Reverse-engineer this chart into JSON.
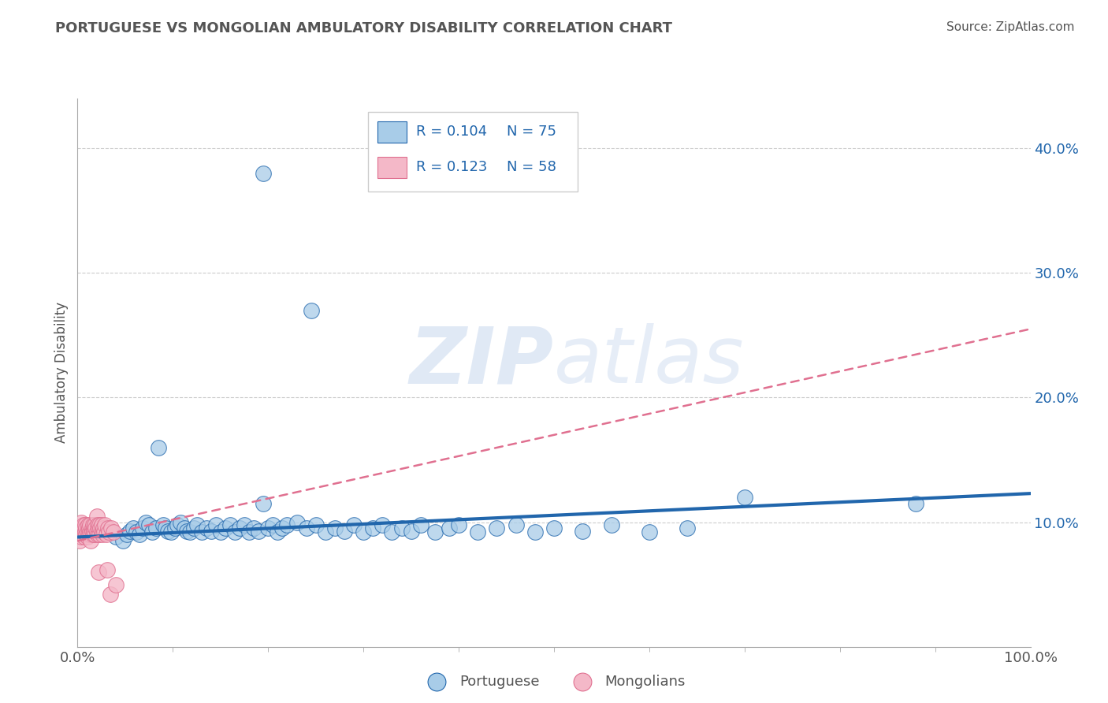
{
  "title": "PORTUGUESE VS MONGOLIAN AMBULATORY DISABILITY CORRELATION CHART",
  "source": "Source: ZipAtlas.com",
  "ylabel": "Ambulatory Disability",
  "watermark": "ZIPatlas",
  "legend_r1": "R = 0.104",
  "legend_n1": "N = 75",
  "legend_r2": "R = 0.123",
  "legend_n2": "N = 58",
  "label1": "Portuguese",
  "label2": "Mongolians",
  "color1": "#a8cce8",
  "color2": "#f4b8c8",
  "trendline_color1": "#2166ac",
  "trendline_color2": "#e07090",
  "background_color": "#ffffff",
  "grid_color": "#cccccc",
  "title_color": "#555555",
  "xlim": [
    0.0,
    1.0
  ],
  "ylim": [
    0.0,
    0.44
  ],
  "yticks": [
    0.1,
    0.2,
    0.3,
    0.4
  ],
  "ytick_labels": [
    "10.0%",
    "20.0%",
    "30.0%",
    "40.0%"
  ],
  "xtick_labels": [
    "0.0%",
    "100.0%"
  ],
  "portuguese_x": [
    0.195,
    0.245,
    0.035,
    0.04,
    0.048,
    0.052,
    0.055,
    0.058,
    0.062,
    0.065,
    0.068,
    0.072,
    0.075,
    0.078,
    0.082,
    0.085,
    0.09,
    0.092,
    0.095,
    0.098,
    0.102,
    0.105,
    0.108,
    0.112,
    0.115,
    0.118,
    0.122,
    0.125,
    0.13,
    0.135,
    0.14,
    0.145,
    0.15,
    0.155,
    0.16,
    0.165,
    0.17,
    0.175,
    0.18,
    0.185,
    0.19,
    0.195,
    0.2,
    0.205,
    0.21,
    0.215,
    0.22,
    0.23,
    0.24,
    0.25,
    0.26,
    0.27,
    0.28,
    0.29,
    0.3,
    0.31,
    0.32,
    0.33,
    0.34,
    0.35,
    0.36,
    0.375,
    0.39,
    0.4,
    0.42,
    0.44,
    0.46,
    0.48,
    0.5,
    0.53,
    0.56,
    0.6,
    0.64,
    0.7,
    0.88
  ],
  "portuguese_y": [
    0.38,
    0.27,
    0.092,
    0.088,
    0.085,
    0.09,
    0.093,
    0.095,
    0.092,
    0.09,
    0.095,
    0.1,
    0.098,
    0.092,
    0.095,
    0.16,
    0.098,
    0.095,
    0.093,
    0.092,
    0.095,
    0.098,
    0.1,
    0.095,
    0.093,
    0.092,
    0.095,
    0.098,
    0.092,
    0.095,
    0.093,
    0.098,
    0.092,
    0.095,
    0.098,
    0.092,
    0.095,
    0.098,
    0.092,
    0.095,
    0.093,
    0.115,
    0.095,
    0.098,
    0.092,
    0.095,
    0.098,
    0.1,
    0.095,
    0.098,
    0.092,
    0.095,
    0.093,
    0.098,
    0.092,
    0.095,
    0.098,
    0.092,
    0.095,
    0.093,
    0.098,
    0.092,
    0.095,
    0.098,
    0.092,
    0.095,
    0.098,
    0.092,
    0.095,
    0.093,
    0.098,
    0.092,
    0.095,
    0.12,
    0.115
  ],
  "mongolian_x": [
    0.001,
    0.002,
    0.003,
    0.003,
    0.004,
    0.004,
    0.005,
    0.005,
    0.006,
    0.006,
    0.007,
    0.007,
    0.008,
    0.008,
    0.009,
    0.009,
    0.01,
    0.01,
    0.011,
    0.011,
    0.012,
    0.012,
    0.013,
    0.013,
    0.014,
    0.014,
    0.015,
    0.015,
    0.016,
    0.016,
    0.017,
    0.017,
    0.018,
    0.018,
    0.019,
    0.02,
    0.02,
    0.021,
    0.021,
    0.022,
    0.022,
    0.023,
    0.023,
    0.024,
    0.025,
    0.025,
    0.026,
    0.027,
    0.028,
    0.029,
    0.03,
    0.031,
    0.032,
    0.033,
    0.034,
    0.035,
    0.038,
    0.04
  ],
  "mongolian_y": [
    0.09,
    0.085,
    0.092,
    0.095,
    0.088,
    0.1,
    0.092,
    0.095,
    0.09,
    0.098,
    0.088,
    0.095,
    0.092,
    0.098,
    0.09,
    0.095,
    0.088,
    0.092,
    0.095,
    0.098,
    0.09,
    0.095,
    0.092,
    0.098,
    0.09,
    0.085,
    0.095,
    0.092,
    0.098,
    0.09,
    0.095,
    0.092,
    0.098,
    0.09,
    0.095,
    0.092,
    0.105,
    0.098,
    0.09,
    0.095,
    0.06,
    0.098,
    0.09,
    0.095,
    0.092,
    0.098,
    0.09,
    0.095,
    0.092,
    0.098,
    0.09,
    0.062,
    0.095,
    0.092,
    0.042,
    0.095,
    0.092,
    0.05
  ],
  "port_trend_x0": 0.0,
  "port_trend_y0": 0.088,
  "port_trend_x1": 1.0,
  "port_trend_y1": 0.123,
  "mong_trend_x0": 0.0,
  "mong_trend_y0": 0.085,
  "mong_trend_x1": 1.0,
  "mong_trend_y1": 0.255
}
